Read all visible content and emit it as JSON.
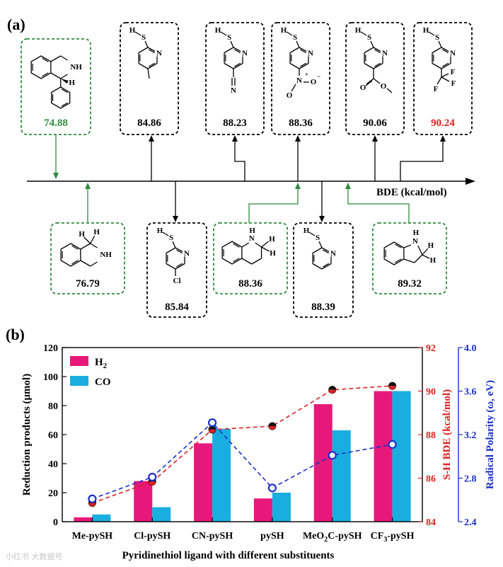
{
  "panel_a": {
    "label": "(a)",
    "axis_label": "BDE  (kcal/mol)",
    "green_color": "#2e8b3e",
    "black_color": "#000000",
    "red_color": "#e02020",
    "above": [
      {
        "id": "thiq-ph",
        "value": "74.88",
        "color": "green",
        "value_color": "#2e8b3e",
        "struct": "thiq-phenyl"
      },
      {
        "id": "me-pysh",
        "value": "84.86",
        "color": "black",
        "value_color": "#000000",
        "struct": "pysh-me"
      },
      {
        "id": "cn-pysh",
        "value": "88.23",
        "color": "black",
        "value_color": "#000000",
        "struct": "pysh-cn"
      },
      {
        "id": "no2-pysh",
        "value": "88.36",
        "color": "black",
        "value_color": "#000000",
        "struct": "pysh-no2"
      },
      {
        "id": "meo2c-pysh",
        "value": "90.06",
        "color": "black",
        "value_color": "#000000",
        "struct": "pysh-ester"
      },
      {
        "id": "cf3-pysh",
        "value": "90.24",
        "color": "black",
        "value_color": "#e02020",
        "struct": "pysh-cf3"
      }
    ],
    "below": [
      {
        "id": "thiq",
        "value": "76.79",
        "color": "green",
        "struct": "thiq"
      },
      {
        "id": "cl-pysh",
        "value": "85.84",
        "color": "black",
        "struct": "pysh-cl"
      },
      {
        "id": "thq",
        "value": "88.36",
        "color": "green",
        "struct": "thq"
      },
      {
        "id": "pysh",
        "value": "88.39",
        "color": "black",
        "struct": "pysh"
      },
      {
        "id": "indoline",
        "value": "89.32",
        "color": "green",
        "struct": "indoline"
      }
    ],
    "atom_labels": {
      "H": "H",
      "S": "S",
      "N": "N",
      "NH": "NH",
      "Cl": "Cl",
      "F": "F",
      "O": "O"
    }
  },
  "chart_data": {
    "type": "bar",
    "panel_label": "(b)",
    "categories": [
      "Me-pySH",
      "Cl-pySH",
      "CN-pySH",
      "pySH",
      "MeO2C-pySH",
      "CF3-pySH"
    ],
    "category_labels": [
      {
        "text": "Me-pySH"
      },
      {
        "text": "Cl-pySH"
      },
      {
        "text": "CN-pySH"
      },
      {
        "text": "pySH"
      },
      {
        "pre": "MeO",
        "sub": "2",
        "post": "C-pySH"
      },
      {
        "pre": "CF",
        "sub": "3",
        "post": "-pySH"
      }
    ],
    "series": [
      {
        "name": "H2",
        "label": "H",
        "label_sub": "2",
        "color": "#e8187a",
        "values": [
          3,
          28,
          54,
          16,
          81,
          90
        ]
      },
      {
        "name": "CO",
        "label": "CO",
        "label_sub": "",
        "color": "#1aaee0",
        "values": [
          5,
          10,
          64,
          20,
          63,
          90
        ]
      }
    ],
    "line_series": [
      {
        "name": "S-H BDE",
        "axis": "right1",
        "color": "#e02020",
        "values": [
          84.86,
          85.84,
          88.23,
          88.39,
          90.06,
          90.24
        ]
      },
      {
        "name": "Radical Polarity",
        "axis": "right2",
        "color": "#1a2fc8",
        "values": [
          2.61,
          2.81,
          3.31,
          2.71,
          3.01,
          3.11
        ]
      }
    ],
    "xlabel": "Pyridinethiol ligand with different substituents",
    "ylabel": "Reduction products (μmol)",
    "ylim": [
      0,
      120
    ],
    "yticks": [
      "0",
      "20",
      "40",
      "60",
      "80",
      "100",
      "120"
    ],
    "y2label": "S-H BDE (kcal/mol)",
    "y2lim": [
      84,
      92
    ],
    "y2ticks": [
      "84",
      "86",
      "88",
      "90",
      "92"
    ],
    "y3label": "Radical Polarity (ω, eV)",
    "y3lim": [
      2.4,
      4.0
    ],
    "y3ticks": [
      "2.4",
      "2.8",
      "3.2",
      "3.6",
      "4.0"
    ]
  },
  "watermark": "小红书 大数据号"
}
